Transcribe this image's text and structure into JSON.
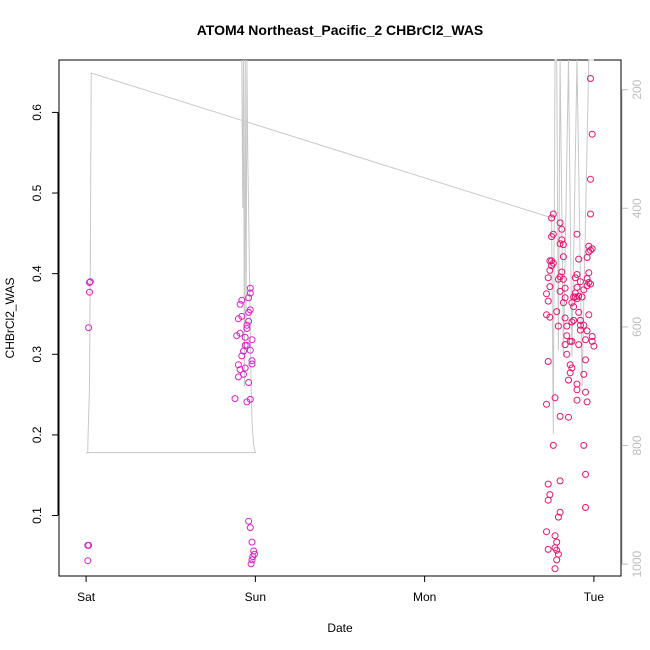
{
  "chart_data": {
    "type": "scatter",
    "title": "ATOM4 Northeast_Pacific_2 CHBrCl2_WAS",
    "xlabel": "Date",
    "ylabel": "CHBrCl2_WAS",
    "x_ticks": [
      {
        "label": "Sat",
        "value": 0
      },
      {
        "label": "Sun",
        "value": 1
      },
      {
        "label": "Mon",
        "value": 2
      },
      {
        "label": "Tue",
        "value": 3
      }
    ],
    "xlim": [
      -0.16,
      3.16
    ],
    "ylim": [
      0.025,
      0.665
    ],
    "y_ticks": [
      0.1,
      0.2,
      0.3,
      0.4,
      0.5,
      0.6
    ],
    "y2_label": "",
    "y2_ticks": [
      200,
      400,
      600,
      800,
      1000
    ],
    "y2_lim": [
      1020,
      150
    ],
    "y2_reversed": true,
    "point_color": "#e8146e",
    "point_color_alt": "#e020c8",
    "line_color": "#c8c8c8",
    "series": [
      {
        "values": [
          [
            0.02,
            0.389
          ],
          [
            0.025,
            0.39
          ],
          [
            0.02,
            0.377
          ],
          [
            0.015,
            0.333
          ],
          [
            0.01,
            0.063
          ],
          [
            0.015,
            0.063
          ],
          [
            0.01,
            0.044
          ],
          [
            0.88,
            0.245
          ],
          [
            0.9,
            0.272
          ],
          [
            0.91,
            0.281
          ],
          [
            0.9,
            0.287
          ],
          [
            0.92,
            0.298
          ],
          [
            0.89,
            0.323
          ],
          [
            0.91,
            0.326
          ],
          [
            0.9,
            0.344
          ],
          [
            0.92,
            0.347
          ],
          [
            0.91,
            0.362
          ],
          [
            0.92,
            0.367
          ],
          [
            0.93,
            0.275
          ],
          [
            0.94,
            0.283
          ],
          [
            0.93,
            0.304
          ],
          [
            0.94,
            0.311
          ],
          [
            0.95,
            0.311
          ],
          [
            0.94,
            0.321
          ],
          [
            0.95,
            0.332
          ],
          [
            0.95,
            0.336
          ],
          [
            0.96,
            0.341
          ],
          [
            0.96,
            0.352
          ],
          [
            0.97,
            0.355
          ],
          [
            0.96,
            0.37
          ],
          [
            0.97,
            0.376
          ],
          [
            0.97,
            0.382
          ],
          [
            0.98,
            0.288
          ],
          [
            0.98,
            0.292
          ],
          [
            0.97,
            0.305
          ],
          [
            0.95,
            0.241
          ],
          [
            0.97,
            0.244
          ],
          [
            0.96,
            0.265
          ],
          [
            0.98,
            0.318
          ],
          [
            0.96,
            0.093
          ],
          [
            0.97,
            0.085
          ],
          [
            0.98,
            0.067
          ],
          [
            0.99,
            0.056
          ],
          [
            0.995,
            0.052
          ],
          [
            0.985,
            0.049
          ],
          [
            0.98,
            0.045
          ],
          [
            0.975,
            0.04
          ]
        ]
      },
      {
        "values": [
          [
            2.72,
            0.375
          ],
          [
            2.73,
            0.366
          ],
          [
            2.72,
            0.349
          ],
          [
            2.74,
            0.384
          ],
          [
            2.73,
            0.395
          ],
          [
            2.74,
            0.404
          ],
          [
            2.75,
            0.41
          ],
          [
            2.74,
            0.416
          ],
          [
            2.75,
            0.416
          ],
          [
            2.76,
            0.413
          ],
          [
            2.75,
            0.446
          ],
          [
            2.76,
            0.449
          ],
          [
            2.75,
            0.469
          ],
          [
            2.76,
            0.474
          ],
          [
            2.74,
            0.346
          ],
          [
            2.73,
            0.291
          ],
          [
            2.72,
            0.238
          ],
          [
            2.77,
            0.246
          ],
          [
            2.73,
            0.139
          ],
          [
            2.74,
            0.126
          ],
          [
            2.73,
            0.119
          ],
          [
            2.72,
            0.08
          ],
          [
            2.73,
            0.058
          ],
          [
            2.76,
            0.187
          ],
          [
            2.77,
            0.075
          ],
          [
            2.78,
            0.067
          ],
          [
            2.77,
            0.06
          ],
          [
            2.78,
            0.057
          ],
          [
            2.79,
            0.052
          ],
          [
            2.78,
            0.045
          ],
          [
            2.77,
            0.034
          ],
          [
            2.79,
            0.098
          ],
          [
            2.8,
            0.104
          ],
          [
            2.8,
            0.143
          ],
          [
            2.8,
            0.223
          ],
          [
            2.78,
            0.353
          ],
          [
            2.79,
            0.335
          ],
          [
            2.8,
            0.378
          ],
          [
            2.79,
            0.393
          ],
          [
            2.8,
            0.396
          ],
          [
            2.81,
            0.402
          ],
          [
            2.8,
            0.437
          ],
          [
            2.81,
            0.442
          ],
          [
            2.82,
            0.436
          ],
          [
            2.81,
            0.455
          ],
          [
            2.8,
            0.463
          ],
          [
            2.82,
            0.421
          ],
          [
            2.82,
            0.393
          ],
          [
            2.83,
            0.382
          ],
          [
            2.83,
            0.37
          ],
          [
            2.82,
            0.364
          ],
          [
            2.83,
            0.345
          ],
          [
            2.84,
            0.335
          ],
          [
            2.84,
            0.323
          ],
          [
            2.83,
            0.312
          ],
          [
            2.84,
            0.3
          ],
          [
            2.85,
            0.268
          ],
          [
            2.86,
            0.277
          ],
          [
            2.85,
            0.222
          ],
          [
            2.86,
            0.287
          ],
          [
            2.87,
            0.283
          ],
          [
            2.86,
            0.316
          ],
          [
            2.87,
            0.316
          ],
          [
            2.87,
            0.34
          ],
          [
            2.88,
            0.342
          ],
          [
            2.88,
            0.359
          ],
          [
            2.87,
            0.364
          ],
          [
            2.88,
            0.371
          ],
          [
            2.89,
            0.371
          ],
          [
            2.89,
            0.376
          ],
          [
            2.9,
            0.369
          ],
          [
            2.9,
            0.383
          ],
          [
            2.89,
            0.395
          ],
          [
            2.9,
            0.399
          ],
          [
            2.91,
            0.372
          ],
          [
            2.91,
            0.352
          ],
          [
            2.92,
            0.342
          ],
          [
            2.92,
            0.336
          ],
          [
            2.91,
            0.312
          ],
          [
            2.92,
            0.33
          ],
          [
            2.9,
            0.243
          ],
          [
            2.9,
            0.256
          ],
          [
            2.9,
            0.263
          ],
          [
            2.9,
            0.449
          ],
          [
            2.91,
            0.418
          ],
          [
            2.92,
            0.39
          ],
          [
            2.93,
            0.371
          ],
          [
            2.94,
            0.38
          ],
          [
            2.94,
            0.336
          ],
          [
            2.95,
            0.293
          ],
          [
            2.94,
            0.275
          ],
          [
            2.95,
            0.253
          ],
          [
            2.96,
            0.241
          ],
          [
            2.94,
            0.187
          ],
          [
            2.95,
            0.151
          ],
          [
            2.95,
            0.11
          ],
          [
            2.95,
            0.318
          ],
          [
            2.96,
            0.329
          ],
          [
            2.97,
            0.349
          ],
          [
            2.96,
            0.385
          ],
          [
            2.97,
            0.389
          ],
          [
            2.96,
            0.394
          ],
          [
            2.97,
            0.401
          ],
          [
            2.98,
            0.387
          ],
          [
            2.96,
            0.42
          ],
          [
            2.97,
            0.427
          ],
          [
            2.98,
            0.429
          ],
          [
            2.97,
            0.434
          ],
          [
            2.99,
            0.431
          ],
          [
            2.98,
            0.474
          ],
          [
            2.98,
            0.517
          ],
          [
            2.99,
            0.322
          ],
          [
            2.99,
            0.316
          ],
          [
            3.0,
            0.31
          ],
          [
            2.99,
            0.573
          ],
          [
            2.98,
            0.642
          ]
        ]
      }
    ],
    "line_series": {
      "y_axis": "right",
      "values": [
        [
          0.0,
          812
        ],
        [
          0.01,
          812
        ],
        [
          0.01,
          800
        ],
        [
          0.02,
          700
        ],
        [
          0.025,
          500
        ],
        [
          0.03,
          172
        ],
        [
          2.75,
          416
        ],
        [
          2.76,
          780
        ],
        [
          2.77,
          150
        ],
        [
          2.78,
          150
        ],
        [
          2.79,
          640
        ],
        [
          2.8,
          150
        ],
        [
          2.82,
          650
        ],
        [
          2.85,
          150
        ],
        [
          2.87,
          650
        ],
        [
          2.9,
          150
        ],
        [
          2.93,
          700
        ],
        [
          2.97,
          150
        ],
        [
          3.0,
          150
        ]
      ],
      "extra_values": [
        [
          0.0,
          812
        ],
        [
          1.0,
          812
        ],
        [
          0.99,
          800
        ],
        [
          0.985,
          780
        ],
        [
          0.98,
          760
        ],
        [
          0.975,
          700
        ],
        [
          0.97,
          600
        ],
        [
          0.965,
          500
        ],
        [
          0.96,
          400
        ],
        [
          0.955,
          300
        ],
        [
          0.95,
          150
        ],
        [
          0.945,
          600
        ],
        [
          0.94,
          150
        ],
        [
          0.935,
          700
        ],
        [
          0.93,
          150
        ],
        [
          0.925,
          400
        ],
        [
          0.92,
          150
        ]
      ]
    }
  }
}
